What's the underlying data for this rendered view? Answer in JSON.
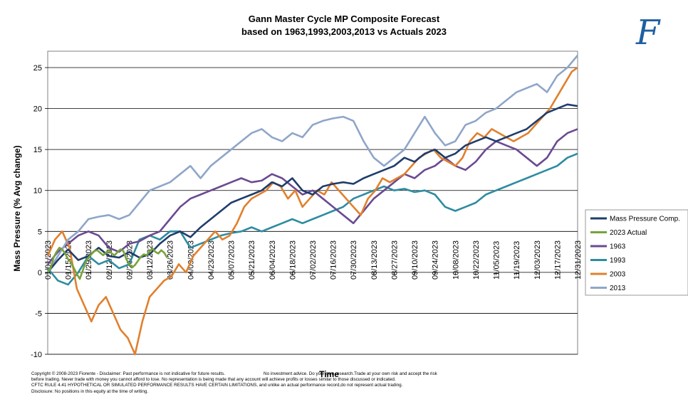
{
  "header": {
    "title_line1": "Gann Master Cycle MP Composite Forecast",
    "title_line2": "based  on 1963,1993,2003,2013  vs Actuals  2023",
    "logo_text": "F"
  },
  "footer": {
    "line1a": "Copyright © 2008-2023  Fiorente -  Disclaimer: Past performance is not indicative for future results.",
    "line1b": "No investment advice.  Do your own research.Trade at your own risk and accept the risk",
    "line2": "before trading.  Never trade with money you cannot afford to lose. No representation is being made that any account will achieve profits or losses similar to those discussed or indicated.",
    "line3": "CFTC RULE 4.41 HYPOTHETICAL OR SIMULATED PERFORMANCE RESULTS HAVE CERTAIN LIMITATIONS, and unlike an actual performance record,do not represent actual trading.",
    "line4": "Disclosure: No positions  in this equity  at the time of writing."
  },
  "chart_data": {
    "type": "line",
    "title": "Gann Master Cycle MP Composite Forecast based on 1963,1993,2003,2013 vs Actuals 2023",
    "xlabel": "Time",
    "ylabel": "Mass Pressure (% Avg change)",
    "ylim": [
      -10,
      27
    ],
    "yticks": [
      -10,
      -5,
      0,
      5,
      10,
      15,
      20,
      25
    ],
    "grid": true,
    "legend_position": "right",
    "x_ticks": [
      "01/01/2023",
      "01/15/2023",
      "01/29/2023",
      "02/12/2023",
      "02/26/2023",
      "03/12/2023",
      "03/26/2023",
      "04/09/2023",
      "04/23/2023",
      "05/07/2023",
      "05/21/2023",
      "06/04/2023",
      "06/18/2023",
      "07/02/2023",
      "07/16/2023",
      "07/30/2023",
      "08/13/2023",
      "08/27/2023",
      "09/10/2023",
      "09/24/2023",
      "10/08/2023",
      "10/22/2023",
      "11/05/2023",
      "11/19/2023",
      "12/03/2023",
      "12/17/2023",
      "12/31/2023"
    ],
    "series": [
      {
        "name": "Mass Pressure Comp.",
        "color": "#1f3d6b",
        "x": [
          0,
          7,
          14,
          21,
          28,
          35,
          42,
          49,
          56,
          63,
          70,
          77,
          84,
          91,
          98,
          105,
          112,
          119,
          126,
          133,
          140,
          147,
          154,
          161,
          168,
          175,
          182,
          189,
          196,
          203,
          210,
          217,
          224,
          231,
          238,
          245,
          252,
          259,
          266,
          273,
          280,
          287,
          294,
          301,
          308,
          315,
          322,
          329,
          336,
          343,
          350,
          357,
          364
        ],
        "y": [
          0,
          1.5,
          2.8,
          1.5,
          2,
          3,
          2,
          1.8,
          2.5,
          1.8,
          2.2,
          3.5,
          4.5,
          5,
          4.3,
          5.5,
          6.5,
          7.5,
          8.5,
          9,
          9.5,
          10,
          11,
          10.5,
          11.5,
          10,
          9.5,
          10.5,
          10.8,
          11,
          10.8,
          11.5,
          12,
          12.5,
          13,
          14,
          13.5,
          14.5,
          15,
          14,
          14.5,
          15.5,
          16,
          16.5,
          16,
          16.5,
          17,
          17.5,
          18.5,
          19.5,
          20,
          20.5,
          20.3
        ]
      },
      {
        "name": "2023 Actual",
        "color": "#77a33a",
        "x": [
          0,
          2,
          4,
          6,
          8,
          10,
          12,
          14,
          16,
          18,
          20,
          22,
          24,
          26,
          28,
          30,
          32,
          34,
          36,
          38,
          40,
          42,
          44,
          46,
          48,
          50,
          52,
          54,
          56,
          58,
          60,
          62,
          64,
          66,
          68,
          70,
          72,
          74,
          76,
          78,
          80,
          82
        ],
        "y": [
          0,
          0.5,
          1.8,
          2.5,
          3,
          2.8,
          2.3,
          1.6,
          1.2,
          0.5,
          -0.2,
          -0.8,
          0.2,
          1.2,
          1.8,
          2.2,
          2.6,
          2.7,
          2.4,
          2.1,
          2.4,
          2.7,
          2.3,
          2.1,
          2.5,
          2.8,
          2.6,
          1.6,
          1.0,
          0.6,
          0.9,
          1.4,
          1.9,
          2.2,
          2.1,
          2.6,
          2.9,
          2.5,
          2.3,
          2.7,
          2.4,
          1.8
        ]
      },
      {
        "name": "1963",
        "color": "#6b4a91",
        "x": [
          0,
          7,
          14,
          21,
          28,
          35,
          42,
          49,
          56,
          63,
          70,
          77,
          84,
          91,
          98,
          105,
          112,
          119,
          126,
          133,
          140,
          147,
          154,
          161,
          168,
          175,
          182,
          189,
          196,
          203,
          210,
          217,
          224,
          231,
          238,
          245,
          252,
          259,
          266,
          273,
          280,
          287,
          294,
          301,
          308,
          315,
          322,
          329,
          336,
          343,
          350,
          357,
          364
        ],
        "y": [
          1,
          2.5,
          3.5,
          4.5,
          5,
          4.5,
          3,
          2.5,
          3.5,
          3.8,
          4.5,
          5,
          6.5,
          8,
          9,
          9.5,
          10,
          10.5,
          11,
          11.5,
          11,
          11.2,
          12,
          11.5,
          10.5,
          9.5,
          10,
          9,
          8,
          7,
          6,
          7.5,
          9,
          10,
          11,
          12,
          11.5,
          12.5,
          13,
          14,
          13,
          12.5,
          13.5,
          15,
          16,
          15.5,
          15,
          14,
          13,
          14,
          16,
          17,
          17.5
        ]
      },
      {
        "name": "1993",
        "color": "#2e8ca0",
        "x": [
          0,
          7,
          14,
          21,
          28,
          35,
          42,
          49,
          56,
          63,
          70,
          77,
          84,
          91,
          98,
          105,
          112,
          119,
          126,
          133,
          140,
          147,
          154,
          161,
          168,
          175,
          182,
          189,
          196,
          203,
          210,
          217,
          224,
          231,
          238,
          245,
          252,
          259,
          266,
          273,
          280,
          287,
          294,
          301,
          308,
          315,
          322,
          329,
          336,
          343,
          350,
          357,
          364
        ],
        "y": [
          0.5,
          -1,
          -1.5,
          0,
          2,
          1,
          1.5,
          0.5,
          1,
          4,
          4.5,
          4,
          5,
          5,
          3,
          3.5,
          4,
          4.5,
          4.8,
          5,
          5.5,
          5,
          5.5,
          6,
          6.5,
          6,
          6.5,
          7,
          7.5,
          8,
          9,
          9.5,
          10,
          10.5,
          10,
          10.2,
          9.8,
          10,
          9.5,
          8,
          7.5,
          8,
          8.5,
          9.5,
          10,
          10.5,
          11,
          11.5,
          12,
          12.5,
          13,
          14,
          14.5
        ]
      },
      {
        "name": "2003",
        "color": "#e0802e",
        "x": [
          0,
          5,
          10,
          15,
          20,
          25,
          30,
          35,
          40,
          45,
          50,
          55,
          60,
          65,
          70,
          75,
          80,
          85,
          90,
          95,
          100,
          105,
          110,
          115,
          120,
          125,
          130,
          135,
          140,
          145,
          150,
          155,
          160,
          165,
          170,
          175,
          180,
          185,
          190,
          195,
          200,
          205,
          210,
          215,
          220,
          225,
          230,
          235,
          240,
          245,
          250,
          255,
          260,
          265,
          270,
          275,
          280,
          285,
          290,
          295,
          300,
          305,
          310,
          315,
          320,
          325,
          330,
          335,
          340,
          345,
          350,
          355,
          360,
          364
        ],
        "y": [
          2,
          4,
          5,
          3,
          -2,
          -4,
          -6,
          -4,
          -3,
          -5,
          -7,
          -8,
          -10,
          -6,
          -3,
          -2,
          -1,
          -0.5,
          1,
          0,
          2,
          3,
          4,
          5,
          4,
          4.5,
          6,
          8,
          9,
          9.5,
          10,
          11,
          10.5,
          9,
          10,
          8,
          9,
          10,
          9.5,
          11,
          10,
          9,
          8,
          7,
          9,
          10,
          11.5,
          11,
          11.5,
          12,
          13,
          14,
          14.5,
          15,
          14,
          13.5,
          13,
          14,
          16,
          17,
          16.5,
          17.5,
          17,
          16.5,
          16,
          16.5,
          17,
          18,
          19,
          20,
          21.5,
          23,
          24.5,
          25
        ]
      },
      {
        "name": "2013",
        "color": "#8fa6c9",
        "x": [
          0,
          7,
          14,
          21,
          28,
          35,
          42,
          49,
          56,
          63,
          70,
          77,
          84,
          91,
          98,
          105,
          112,
          119,
          126,
          133,
          140,
          147,
          154,
          161,
          168,
          175,
          182,
          189,
          196,
          203,
          210,
          217,
          224,
          231,
          238,
          245,
          252,
          259,
          266,
          273,
          280,
          287,
          294,
          301,
          308,
          315,
          322,
          329,
          336,
          343,
          350,
          357,
          364
        ],
        "y": [
          0,
          2,
          4,
          5,
          6.5,
          6.8,
          7,
          6.5,
          7,
          8.5,
          10,
          10.5,
          11,
          12,
          13,
          11.5,
          13,
          14,
          15,
          16,
          17,
          17.5,
          16.5,
          16,
          17,
          16.5,
          18,
          18.5,
          18.8,
          19,
          18.5,
          16,
          14,
          13,
          14,
          15,
          17,
          19,
          17,
          15.5,
          16,
          18,
          18.5,
          19.5,
          20,
          21,
          22,
          22.5,
          23,
          22,
          24,
          25,
          26.5
        ]
      }
    ]
  }
}
